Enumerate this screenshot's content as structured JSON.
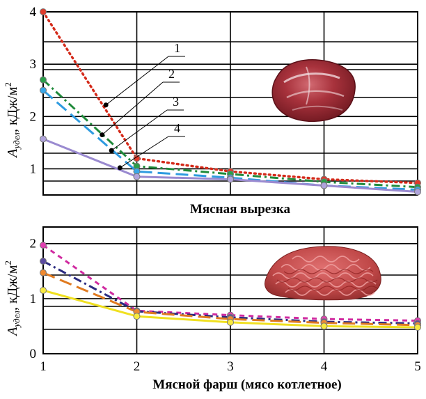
{
  "chart_data": [
    {
      "type": "line",
      "title": "",
      "xlabel": "Мясная вырезка",
      "ylabel": {
        "symbol": "A",
        "subscript": "удел",
        "unit": ", кДж/м",
        "power": "2"
      },
      "xlim": [
        1,
        5
      ],
      "ylim": [
        0.5,
        4
      ],
      "x_ticks": [],
      "y_ticks": [
        1,
        2,
        3,
        4
      ],
      "x": [
        1,
        2,
        3,
        4,
        5
      ],
      "series": [
        {
          "name": "1",
          "values": [
            4.0,
            1.2,
            0.95,
            0.8,
            0.73
          ],
          "color": "#d42a1a",
          "dash": "dot",
          "marker_color": "#e03a2a"
        },
        {
          "name": "2",
          "values": [
            2.7,
            1.05,
            0.9,
            0.75,
            0.65
          ],
          "color": "#1f8a3a",
          "dash": "dashdot",
          "marker_color": "#2aa04a"
        },
        {
          "name": "3",
          "values": [
            2.5,
            0.95,
            0.83,
            0.68,
            0.6
          ],
          "color": "#2f9be0",
          "dash": "longdash",
          "marker_color": "#38a8ea"
        },
        {
          "name": "4",
          "values": [
            1.57,
            0.85,
            0.8,
            0.68,
            0.56
          ],
          "color": "#9a8ad0",
          "dash": "solid",
          "marker_color": "#b0a4dc"
        }
      ],
      "annotations": [
        {
          "text": "1",
          "target_x": 1.67,
          "target_y": 2.22
        },
        {
          "text": "2",
          "target_x": 1.63,
          "target_y": 1.65
        },
        {
          "text": "3",
          "target_x": 1.73,
          "target_y": 1.35
        },
        {
          "text": "4",
          "target_x": 1.82,
          "target_y": 1.02
        }
      ],
      "grid": true,
      "legend": "none"
    },
    {
      "type": "line",
      "title": "",
      "xlabel": "Мясной фарш (мясо котлетное)",
      "ylabel": {
        "symbol": "A",
        "subscript": "удел",
        "unit": ", кДж/м",
        "power": "2"
      },
      "xlim": [
        1,
        5
      ],
      "ylim": [
        0,
        2.3
      ],
      "x_ticks": [
        1,
        2,
        3,
        4,
        5
      ],
      "y_ticks": [
        0,
        1,
        2
      ],
      "x": [
        1,
        2,
        3,
        4,
        5
      ],
      "series": [
        {
          "name": "",
          "values": [
            1.97,
            0.78,
            0.7,
            0.63,
            0.6
          ],
          "color": "#d02aa0",
          "dash": "dash",
          "marker_color": "#e040b0"
        },
        {
          "name": "",
          "values": [
            1.68,
            0.77,
            0.66,
            0.58,
            0.55
          ],
          "color": "#2a2a80",
          "dash": "dashdot",
          "marker_color": "#5a4aa0"
        },
        {
          "name": "",
          "values": [
            1.47,
            0.76,
            0.63,
            0.56,
            0.52
          ],
          "color": "#e07a20",
          "dash": "longdash",
          "marker_color": "#f08a30"
        },
        {
          "name": "",
          "values": [
            1.15,
            0.68,
            0.57,
            0.5,
            0.48
          ],
          "color": "#f0e020",
          "dash": "solid",
          "marker_color": "#f8ea40"
        }
      ],
      "grid": true,
      "legend": "none"
    }
  ],
  "illustrations": [
    {
      "name": "beef-tenderloin-photo"
    },
    {
      "name": "minced-meat-photo"
    }
  ]
}
